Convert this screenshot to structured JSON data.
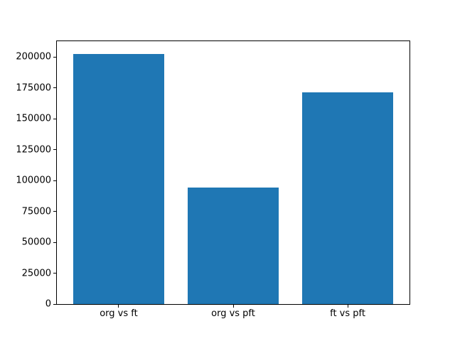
{
  "chart_data": {
    "type": "bar",
    "categories": [
      "org vs ft",
      "org vs pft",
      "ft vs pft"
    ],
    "values": [
      202700,
      94400,
      171600
    ],
    "yticks": [
      0,
      25000,
      50000,
      75000,
      100000,
      125000,
      150000,
      175000,
      200000
    ],
    "ylim": [
      0,
      212800
    ],
    "xlim": [
      -0.54,
      2.54
    ],
    "bar_width": 0.8,
    "bar_color": "#1f77b4",
    "spine_color": "#000000",
    "text_color": "#000000",
    "background_color": "#ffffff",
    "grid": "off",
    "legend": "none"
  }
}
